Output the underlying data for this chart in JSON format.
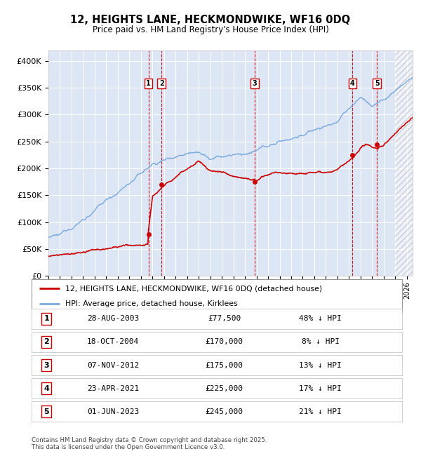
{
  "title": "12, HEIGHTS LANE, HECKMONDWIKE, WF16 0DQ",
  "subtitle": "Price paid vs. HM Land Registry's House Price Index (HPI)",
  "background_color": "#ffffff",
  "plot_bg_color": "#dce6f5",
  "grid_color": "#ffffff",
  "sale_color": "#cc0000",
  "hpi_color": "#7aaadd",
  "transactions": [
    {
      "num": 1,
      "date": "28-AUG-2003",
      "year": 2003.65,
      "price": 77500,
      "hpi_pct": "48% ↓ HPI"
    },
    {
      "num": 2,
      "date": "18-OCT-2004",
      "year": 2004.79,
      "price": 170000,
      "hpi_pct": "8% ↓ HPI"
    },
    {
      "num": 3,
      "date": "07-NOV-2012",
      "year": 2012.85,
      "price": 175000,
      "hpi_pct": "13% ↓ HPI"
    },
    {
      "num": 4,
      "date": "23-APR-2021",
      "year": 2021.31,
      "price": 225000,
      "hpi_pct": "17% ↓ HPI"
    },
    {
      "num": 5,
      "date": "01-JUN-2023",
      "year": 2023.42,
      "price": 245000,
      "hpi_pct": "21% ↓ HPI"
    }
  ],
  "legend_sale": "12, HEIGHTS LANE, HECKMONDWIKE, WF16 0DQ (detached house)",
  "legend_hpi": "HPI: Average price, detached house, Kirklees",
  "footnote": "Contains HM Land Registry data © Crown copyright and database right 2025.\nThis data is licensed under the Open Government Licence v3.0.",
  "ylim": [
    0,
    420000
  ],
  "xlim": [
    1995,
    2026.5
  ],
  "yticks": [
    0,
    50000,
    100000,
    150000,
    200000,
    250000,
    300000,
    350000,
    400000
  ],
  "ytick_labels": [
    "£0",
    "£50K",
    "£100K",
    "£150K",
    "£200K",
    "£250K",
    "£300K",
    "£350K",
    "£400K"
  ],
  "xticks": [
    1995,
    1996,
    1997,
    1998,
    1999,
    2000,
    2001,
    2002,
    2003,
    2004,
    2005,
    2006,
    2007,
    2008,
    2009,
    2010,
    2011,
    2012,
    2013,
    2014,
    2015,
    2016,
    2017,
    2018,
    2019,
    2020,
    2021,
    2022,
    2023,
    2024,
    2025,
    2026
  ],
  "hatch_start": 2025.0
}
